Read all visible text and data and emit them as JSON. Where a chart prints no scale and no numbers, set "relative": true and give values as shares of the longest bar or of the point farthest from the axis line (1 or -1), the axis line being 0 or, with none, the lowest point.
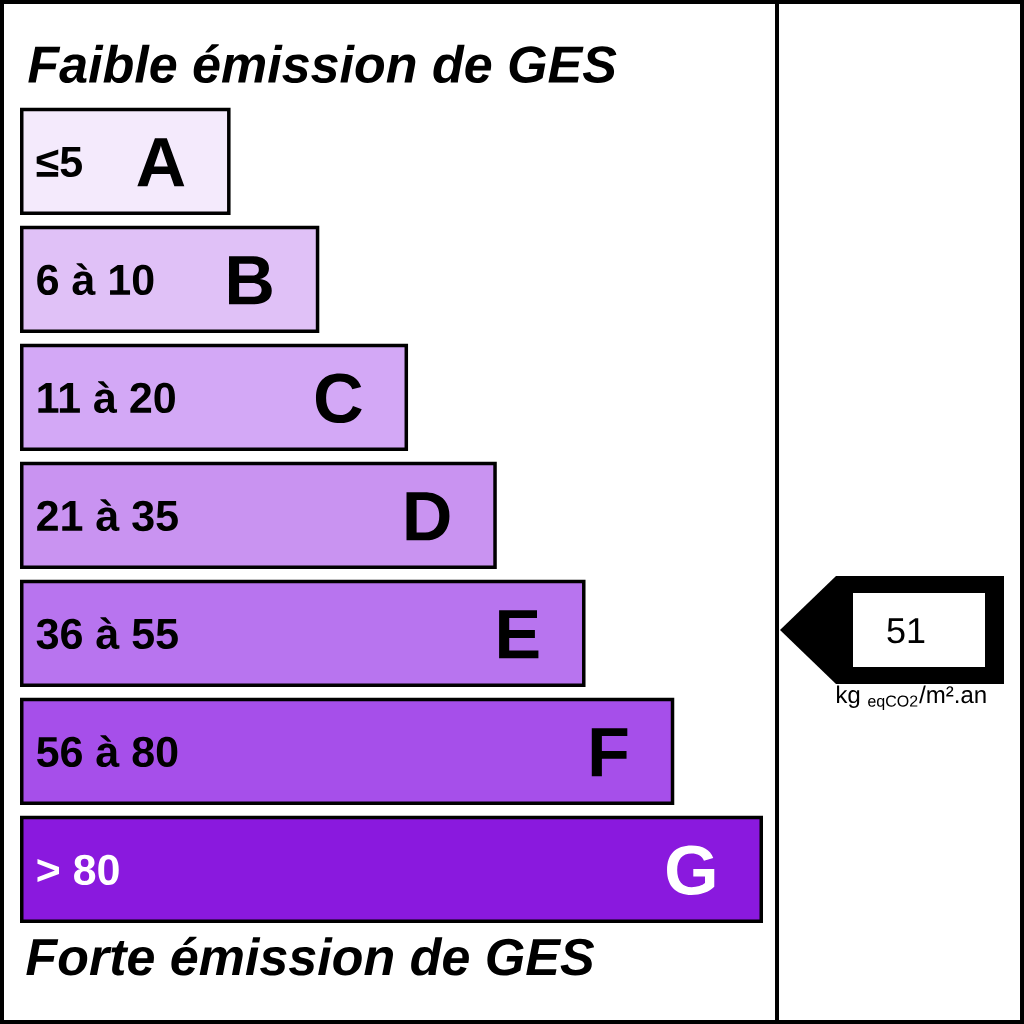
{
  "chart_data": {
    "type": "bar",
    "orientation": "horizontal",
    "relative": true,
    "title": "Faible émission de GES",
    "categories": [
      "A",
      "B",
      "C",
      "D",
      "E",
      "F",
      "G"
    ],
    "values": [
      0.28,
      0.4,
      0.52,
      0.64,
      0.76,
      0.88,
      1
    ],
    "colors": [
      "#f4eafc",
      "#e0c1f7",
      "#d3a8f6",
      "#c993f1",
      "#b874ef",
      "#a64fea",
      "#8a19de"
    ],
    "annotations": [
      "≤5",
      "6 à 10",
      "11 à 20",
      "21 à 35",
      "36 à 55",
      "56 à 80",
      "> 80",
      "51",
      "kg $_{eqCO2}$/m².an",
      "Forte émission de GES"
    ]
  }
}
